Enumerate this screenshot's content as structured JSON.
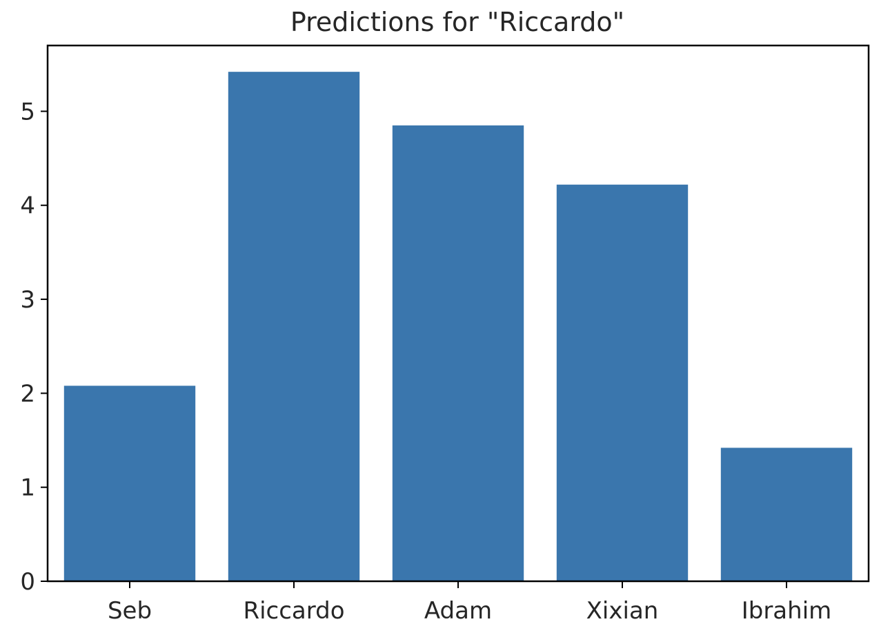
{
  "chart_data": {
    "type": "bar",
    "title": "Predictions for \"Riccardo\"",
    "xlabel": "",
    "ylabel": "",
    "categories": [
      "Seb",
      "Riccardo",
      "Adam",
      "Xixian",
      "Ibrahim"
    ],
    "values": [
      2.08,
      5.42,
      4.85,
      4.22,
      1.42
    ],
    "ylim": [
      0,
      5.7
    ],
    "yticks": [
      0,
      1,
      2,
      3,
      4,
      5
    ],
    "grid": false,
    "bar_color": "#3a76ad",
    "axis_color": "#000000"
  }
}
